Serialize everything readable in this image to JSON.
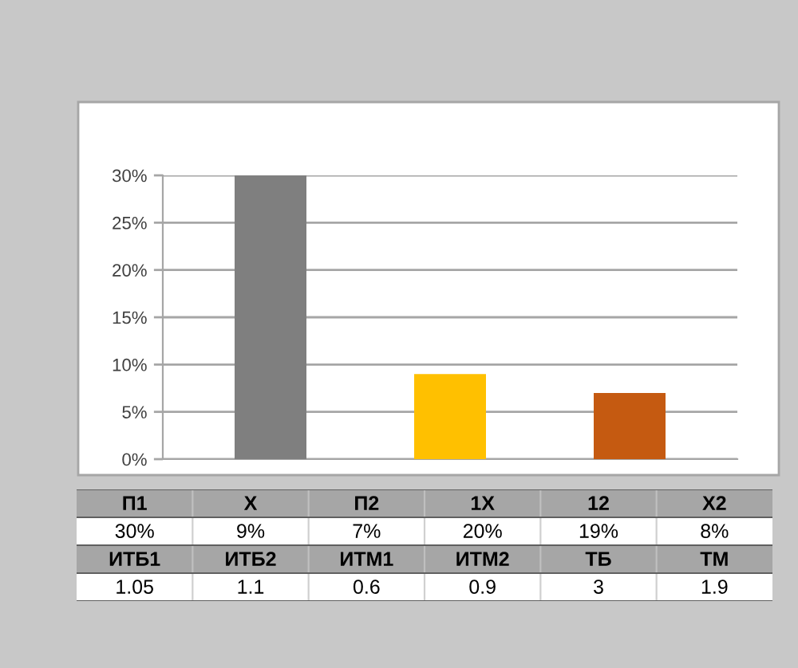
{
  "chart_data": [
    {
      "type": "bar",
      "categories": [
        null,
        null,
        null
      ],
      "values": [
        30,
        9,
        7
      ],
      "colors": [
        "#7f7f7f",
        "#ffc000",
        "#c55a11"
      ],
      "ylim": [
        0,
        30
      ],
      "yticks": [
        {
          "value": 0,
          "label": "0%"
        },
        {
          "value": 5,
          "label": "5%"
        },
        {
          "value": 10,
          "label": "10%"
        },
        {
          "value": 15,
          "label": "15%"
        },
        {
          "value": 20,
          "label": "20%"
        },
        {
          "value": 25,
          "label": "25%"
        },
        {
          "value": 30,
          "label": "30%"
        }
      ],
      "grid": "y"
    },
    {
      "type": "other",
      "cell_labels": [
        [
          "П1",
          "X",
          "П2",
          "1X",
          "12",
          "X2"
        ],
        [
          "30%",
          "9%",
          "7%",
          "20%",
          "19%",
          "8%"
        ],
        [
          "ИТБ1",
          "ИТБ2",
          "ИТМ1",
          "ИТМ2",
          "ТБ",
          "ТМ"
        ],
        [
          "1.05",
          "1.1",
          "0.6",
          "0.9",
          "3",
          "1.9"
        ]
      ]
    }
  ]
}
